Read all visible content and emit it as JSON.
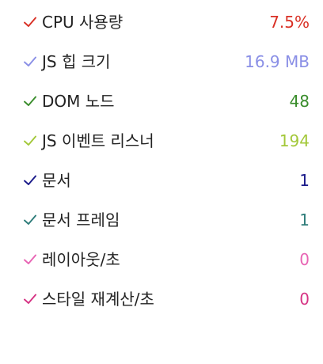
{
  "metrics": [
    {
      "label": "CPU 사용량",
      "value": "7.5%",
      "color": "#d93025",
      "icon": "checkmark-icon"
    },
    {
      "label": "JS 힙 크기",
      "value": "16.9 MB",
      "color": "#8a8fe6",
      "icon": "checkmark-icon"
    },
    {
      "label": "DOM 노드",
      "value": "48",
      "color": "#3a8d2c",
      "icon": "checkmark-icon"
    },
    {
      "label": "JS 이벤트 리스너",
      "value": "194",
      "color": "#a3c83a",
      "icon": "checkmark-icon"
    },
    {
      "label": "문서",
      "value": "1",
      "color": "#1a1a8a",
      "icon": "checkmark-icon"
    },
    {
      "label": "문서 프레임",
      "value": "1",
      "color": "#2f7d7a",
      "icon": "checkmark-icon"
    },
    {
      "label": "레이아웃/초",
      "value": "0",
      "color": "#e864b4",
      "icon": "checkmark-icon"
    },
    {
      "label": "스타일 재계산/초",
      "value": "0",
      "color": "#d63384",
      "icon": "checkmark-icon"
    }
  ]
}
